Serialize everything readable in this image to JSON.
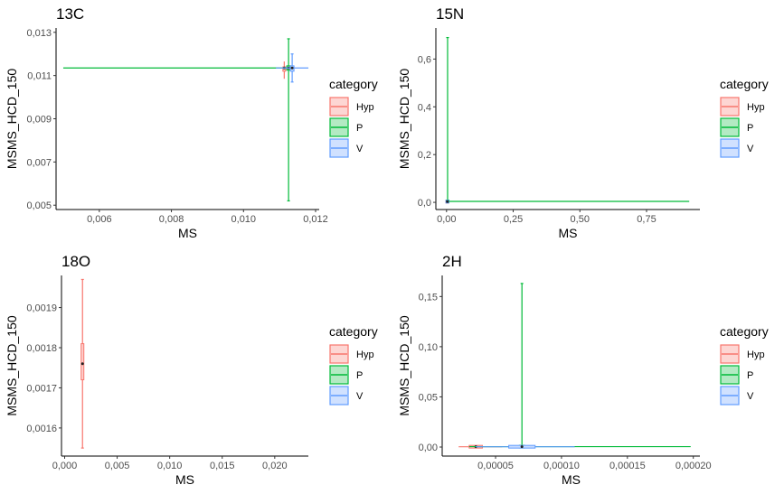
{
  "colors": {
    "Hyp": "#F8766D",
    "P": "#00BA38",
    "V": "#619CFF"
  },
  "chart_data": [
    {
      "type": "boxplot",
      "title": "13C",
      "xlabel": "MS",
      "ylabel": "MSMS_HCD_150",
      "xlim": [
        0.0048,
        0.0121
      ],
      "ylim": [
        0.0048,
        0.0132
      ],
      "xticks": [
        0.006,
        0.008,
        0.01,
        0.012
      ],
      "xtick_labels": [
        "0,006",
        "0,008",
        "0,010",
        "0,012"
      ],
      "yticks": [
        0.005,
        0.007,
        0.009,
        0.011,
        0.013
      ],
      "ytick_labels": [
        "0,005",
        "0,007",
        "0,009",
        "0,011",
        "0,013"
      ],
      "legend": {
        "title": "category",
        "entries": [
          "Hyp",
          "P",
          "V"
        ],
        "position": "right"
      },
      "series": [
        {
          "name": "Hyp",
          "x_box": [
            0.0111,
            0.01113,
            0.01116
          ],
          "x_whisker": [
            0.0109,
            0.0112
          ],
          "y_box": [
            0.0112,
            0.01135,
            0.0114
          ],
          "y_whisker": [
            0.01085,
            0.01165
          ]
        },
        {
          "name": "P",
          "x_box": [
            0.0112,
            0.01125,
            0.0113
          ],
          "x_whisker": [
            0.005,
            0.0113
          ],
          "y_box": [
            0.01125,
            0.01135,
            0.01145
          ],
          "y_whisker": [
            0.0052,
            0.0127
          ]
        },
        {
          "name": "V",
          "x_box": [
            0.0113,
            0.01135,
            0.0114
          ],
          "x_whisker": [
            0.0109,
            0.0118
          ],
          "y_box": [
            0.0112,
            0.01135,
            0.01145
          ],
          "y_whisker": [
            0.0107,
            0.012
          ]
        }
      ]
    },
    {
      "type": "boxplot",
      "title": "15N",
      "xlabel": "MS",
      "ylabel": "MSMS_HCD_150",
      "xlim": [
        -0.04,
        0.95
      ],
      "ylim": [
        -0.03,
        0.73
      ],
      "xticks": [
        0,
        0.25,
        0.5,
        0.75
      ],
      "xtick_labels": [
        "0,00",
        "0,25",
        "0,50",
        "0,75"
      ],
      "yticks": [
        0,
        0.2,
        0.4,
        0.6
      ],
      "ytick_labels": [
        "0,0",
        "0,2",
        "0,4",
        "0,6"
      ],
      "legend": {
        "title": "category",
        "entries": [
          "Hyp",
          "P",
          "V"
        ],
        "position": "right"
      },
      "series": [
        {
          "name": "Hyp",
          "x_box": [
            0.002,
            0.003,
            0.004
          ],
          "x_whisker": [
            0.0,
            0.006
          ],
          "y_box": [
            0.002,
            0.003,
            0.004
          ],
          "y_whisker": [
            0.0,
            0.006
          ]
        },
        {
          "name": "P",
          "x_box": [
            0.002,
            0.004,
            0.006
          ],
          "x_whisker": [
            0.0,
            0.91
          ],
          "y_box": [
            0.002,
            0.004,
            0.006
          ],
          "y_whisker": [
            0.0,
            0.69
          ]
        },
        {
          "name": "V",
          "x_box": [
            0.002,
            0.003,
            0.004
          ],
          "x_whisker": [
            0.0,
            0.006
          ],
          "y_box": [
            0.002,
            0.003,
            0.004
          ],
          "y_whisker": [
            0.0,
            0.006
          ]
        }
      ]
    },
    {
      "type": "boxplot",
      "title": "18O",
      "xlabel": "MS",
      "ylabel": "MSMS_HCD_150",
      "xlim": [
        -0.0003,
        0.0232
      ],
      "ylim": [
        0.00153,
        0.00198
      ],
      "xticks": [
        0,
        0.005,
        0.01,
        0.015,
        0.02
      ],
      "xtick_labels": [
        "0,000",
        "0,005",
        "0,010",
        "0,015",
        "0,020"
      ],
      "yticks": [
        0.0016,
        0.0017,
        0.0018,
        0.0019
      ],
      "ytick_labels": [
        "0,0016",
        "0,0017",
        "0,0018",
        "0,0019"
      ],
      "legend": {
        "title": "category",
        "entries": [
          "Hyp",
          "P",
          "V"
        ],
        "position": "right"
      },
      "series": [
        {
          "name": "Hyp",
          "x_box": [
            0.00165,
            0.0017,
            0.00175
          ],
          "x_whisker": [
            0.00165,
            0.00175
          ],
          "y_box": [
            0.00172,
            0.00176,
            0.00181
          ],
          "y_whisker": [
            0.00155,
            0.00197
          ]
        }
      ]
    },
    {
      "type": "boxplot",
      "title": "2H",
      "xlabel": "MS",
      "ylabel": "MSMS_HCD_150",
      "xlim": [
        9.5e-06,
        0.000205
      ],
      "ylim": [
        -0.009,
        0.171
      ],
      "xticks": [
        5e-05,
        0.0001,
        0.00015,
        0.0002
      ],
      "xtick_labels": [
        "0,00005",
        "0,00010",
        "0,00015",
        "0,00020"
      ],
      "yticks": [
        0,
        0.05,
        0.1,
        0.15
      ],
      "ytick_labels": [
        "0,00",
        "0,05",
        "0,10",
        "0,15"
      ],
      "legend": {
        "title": "category",
        "entries": [
          "Hyp",
          "P",
          "V"
        ],
        "position": "right"
      },
      "series": [
        {
          "name": "Hyp",
          "x_box": [
            3e-05,
            3.5e-05,
            4e-05
          ],
          "x_whisker": [
            2.2e-05,
            5.5e-05
          ],
          "y_box": [
            0.0002,
            0.0003,
            0.0004
          ],
          "y_whisker": [
            0.0,
            0.0006
          ]
        },
        {
          "name": "P",
          "x_box": [
            6.8e-05,
            7e-05,
            7.2e-05
          ],
          "x_whisker": [
            3e-05,
            0.000198
          ],
          "y_box": [
            0.0002,
            0.0004,
            0.0006
          ],
          "y_whisker": [
            0.0,
            0.163
          ]
        },
        {
          "name": "V",
          "x_box": [
            6e-05,
            7e-05,
            8e-05
          ],
          "x_whisker": [
            3.5e-05,
            0.00011
          ],
          "y_box": [
            0.0002,
            0.0003,
            0.0004
          ],
          "y_whisker": [
            0.0,
            0.0006
          ]
        }
      ]
    }
  ]
}
